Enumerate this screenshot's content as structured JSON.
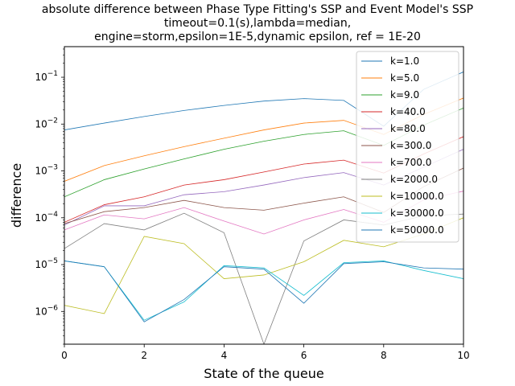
{
  "chart_data": {
    "type": "line",
    "title": "absolute difference between Phase Type Fitting's SSP and Event Model's SSP\ntimeout=0.1(s),lambda=median,\nengine=storm,epsilon=1E-5,dynamic epsilon, ref = 1E-20",
    "xlabel": "State of the queue",
    "ylabel": "difference",
    "yscale": "log",
    "xlim": [
      0,
      10
    ],
    "ylim": [
      2e-07,
      0.45
    ],
    "x_ticks": [
      0,
      2,
      4,
      6,
      8,
      10
    ],
    "y_ticks": [
      {
        "value": 1e-06,
        "mantissa": "10",
        "exp": "−6"
      },
      {
        "value": 1e-05,
        "mantissa": "10",
        "exp": "−5"
      },
      {
        "value": 0.0001,
        "mantissa": "10",
        "exp": "−4"
      },
      {
        "value": 0.001,
        "mantissa": "10",
        "exp": "−3"
      },
      {
        "value": 0.01,
        "mantissa": "10",
        "exp": "−2"
      },
      {
        "value": 0.1,
        "mantissa": "10",
        "exp": "−1"
      }
    ],
    "grid": false,
    "legend_position": "top-right",
    "x": [
      0,
      1,
      2,
      3,
      4,
      5,
      6,
      7,
      8,
      9,
      10
    ],
    "series": [
      {
        "name": "k=1.0",
        "color": "#1f77b4",
        "values": [
          0.0075,
          0.0105,
          0.0145,
          0.0195,
          0.025,
          0.031,
          0.035,
          0.032,
          0.009,
          0.055,
          0.13
        ]
      },
      {
        "name": "k=5.0",
        "color": "#ff7f0e",
        "values": [
          0.0006,
          0.0013,
          0.0021,
          0.0033,
          0.005,
          0.0075,
          0.0105,
          0.012,
          0.006,
          0.016,
          0.036
        ]
      },
      {
        "name": "k=9.0",
        "color": "#2ca02c",
        "values": [
          0.00028,
          0.00065,
          0.0011,
          0.0018,
          0.0029,
          0.0043,
          0.006,
          0.0072,
          0.0035,
          0.0095,
          0.022
        ]
      },
      {
        "name": "k=40.0",
        "color": "#d62728",
        "values": [
          8e-05,
          0.00019,
          0.00028,
          0.0005,
          0.00065,
          0.00095,
          0.0014,
          0.0017,
          0.0009,
          0.0023,
          0.0054
        ]
      },
      {
        "name": "k=80.0",
        "color": "#9467bd",
        "values": [
          7e-05,
          0.00018,
          0.00018,
          0.00031,
          0.00036,
          0.0005,
          0.00072,
          0.00092,
          0.0005,
          0.0012,
          0.0029
        ]
      },
      {
        "name": "k=300.0",
        "color": "#8c564b",
        "values": [
          7.5e-05,
          0.000135,
          0.000165,
          0.000235,
          0.000165,
          0.000145,
          0.000205,
          0.00028,
          0.00013,
          0.00046,
          0.00115
        ]
      },
      {
        "name": "k=700.0",
        "color": "#e377c2",
        "values": [
          5.5e-05,
          0.000115,
          9.5e-05,
          0.000165,
          8.5e-05,
          4.5e-05,
          9e-05,
          0.00015,
          8e-05,
          0.00024,
          0.00037
        ]
      },
      {
        "name": "k=2000.0",
        "color": "#7f7f7f",
        "values": [
          2.2e-05,
          7.5e-05,
          5.5e-05,
          0.000125,
          4.8e-05,
          2e-07,
          3.2e-05,
          9e-05,
          7e-05,
          0.00011,
          0.00012
        ]
      },
      {
        "name": "k=10000.0",
        "color": "#bcbd22",
        "values": [
          1.35e-06,
          9e-07,
          4e-05,
          2.8e-05,
          5e-06,
          6e-06,
          1.15e-05,
          3.3e-05,
          2.4e-05,
          4.5e-05,
          0.0001
        ]
      },
      {
        "name": "k=30000.0",
        "color": "#17becf",
        "values": [
          1.2e-05,
          9e-06,
          6.5e-07,
          1.6e-06,
          9.5e-06,
          8.5e-06,
          2.2e-06,
          1.1e-05,
          1.2e-05,
          7.5e-06,
          5e-06
        ]
      },
      {
        "name": "k=50000.0",
        "color": "#1f77b4",
        "values": [
          1.2e-05,
          9e-06,
          6e-07,
          1.8e-06,
          9e-06,
          8e-06,
          1.5e-06,
          1.05e-05,
          1.15e-05,
          8.5e-06,
          8e-06
        ]
      }
    ]
  }
}
